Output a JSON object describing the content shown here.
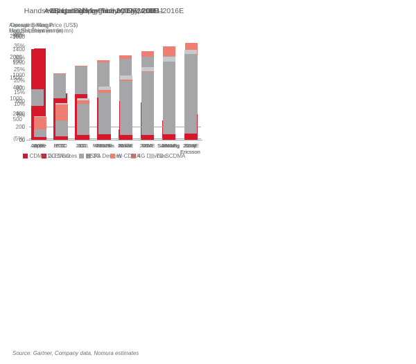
{
  "page": {
    "source_note": "Source: Gartner, Company data, Nomura estimates"
  },
  "colors": {
    "red": "#d6182d",
    "salmon": "#ee7e71",
    "gray": "#a6a6a9",
    "light_gray": "#c8c9cb"
  },
  "chart_data": [
    {
      "id": "asp-by-oem",
      "type": "bar",
      "title": "Average Selling Price by OEM, 2011",
      "axis_label": "Average Selling Price (US$)",
      "ylim": [
        0,
        800
      ],
      "grid": false,
      "legend_position": "none",
      "ticks": [
        {
          "label": "800",
          "value": 800
        },
        {
          "label": "600",
          "value": 600
        },
        {
          "label": "400",
          "value": 400
        },
        {
          "label": "200",
          "value": 200
        },
        {
          "label": "0",
          "value": 0
        }
      ],
      "categories": [
        "Apple",
        "HTC",
        "LG",
        "Motorola",
        "Nokia",
        "RIM",
        "Samsung",
        "Sony Ericsson"
      ],
      "series": [
        {
          "name": "Average Selling Price",
          "color": "red",
          "values": [
            690,
            280,
            120,
            230,
            80,
            285,
            150,
            230
          ]
        }
      ]
    },
    {
      "id": "operating-margin-by-oem",
      "type": "bar",
      "title": "Operating Margin by OEM, 2011",
      "axis_label": "Operating Margin",
      "ylim": [
        -5,
        40
      ],
      "grid": false,
      "legend_position": "none",
      "ticks": [
        {
          "label": "40%",
          "value": 40
        },
        {
          "label": "35%",
          "value": 35
        },
        {
          "label": "30%",
          "value": 30
        },
        {
          "label": "25%",
          "value": 25
        },
        {
          "label": "20%",
          "value": 20
        },
        {
          "label": "15%",
          "value": 15
        },
        {
          "label": "10%",
          "value": 10
        },
        {
          "label": "5%",
          "value": 5
        },
        {
          "label": "0",
          "value": 0
        },
        {
          "label": "(5%)",
          "value": -5
        }
      ],
      "categories": [
        "Apple",
        "HTC",
        "LG",
        "Motorola",
        "Nokia",
        "RIM",
        "Samsung",
        "Sony Ericsson"
      ],
      "series": [
        {
          "name": "Operating Margin",
          "color": "red",
          "values": [
            34,
            14.5,
            1,
            -0.7,
            5.5,
            0.3,
            10.5,
            0.7
          ]
        }
      ]
    },
    {
      "id": "handset-shipments-by-technology",
      "type": "stacked-bar",
      "title": "Handset Shipments by Technology, 2009–2016E",
      "axis_label": "Handset Shipment (in mn)",
      "ylim": [
        0,
        2500
      ],
      "grid": false,
      "legend_position": "bottom",
      "ticks": [
        {
          "label": "2500",
          "value": 2500
        },
        {
          "label": "2000",
          "value": 2000
        },
        {
          "label": "1500",
          "value": 1500
        },
        {
          "label": "1000",
          "value": 1000
        },
        {
          "label": "500",
          "value": 500
        },
        {
          "label": "0",
          "value": 0
        }
      ],
      "categories": [
        "2009",
        "2010",
        "2011",
        "2012E",
        "2013E",
        "2014E",
        "2015E",
        "2016E"
      ],
      "series": [
        {
          "name": "2G Devices",
          "color": "red",
          "values": [
            820,
            1000,
            1100,
            1020,
            940,
            850,
            720,
            620
          ]
        },
        {
          "name": "3G Devices",
          "color": "gray",
          "values": [
            390,
            590,
            660,
            850,
            1010,
            1150,
            1300,
            1400
          ]
        },
        {
          "name": "4G Devcies",
          "color": "salmon",
          "values": [
            0,
            10,
            20,
            40,
            90,
            140,
            230,
            310
          ]
        }
      ]
    },
    {
      "id": "3g-unit-shipments",
      "type": "stacked-bar",
      "title": "3G Unit Shipments, 2009–2016E",
      "axis_label": "Unit Shipment (in mn)",
      "ylim": [
        0,
        1600
      ],
      "grid": false,
      "legend_position": "bottom",
      "ticks": [
        {
          "label": "1600",
          "value": 1600
        },
        {
          "label": "1400",
          "value": 1400
        },
        {
          "label": "1200",
          "value": 1200
        },
        {
          "label": "1000",
          "value": 1000
        },
        {
          "label": "800",
          "value": 800
        },
        {
          "label": "600",
          "value": 600
        },
        {
          "label": "400",
          "value": 400
        },
        {
          "label": "200",
          "value": 200
        },
        {
          "label": "0",
          "value": 0
        }
      ],
      "categories": [
        "2009",
        "2010",
        "2011",
        "2012E",
        "2013E",
        "2014E",
        "2015E",
        "2016E"
      ],
      "series": [
        {
          "name": "CDMA 1x EVDO",
          "color": "red",
          "values": [
            40,
            50,
            70,
            85,
            80,
            80,
            85,
            100
          ]
        },
        {
          "name": "HSPA",
          "color": "gray",
          "values": [
            120,
            250,
            490,
            650,
            835,
            970,
            1125,
            1230
          ]
        },
        {
          "name": "W-CDMA",
          "color": "salmon",
          "values": [
            200,
            250,
            55,
            35,
            20,
            10,
            0,
            0
          ]
        },
        {
          "name": "TD-SCDMA",
          "color": "light_gray",
          "values": [
            10,
            20,
            30,
            55,
            60,
            70,
            75,
            70
          ]
        }
      ]
    }
  ]
}
